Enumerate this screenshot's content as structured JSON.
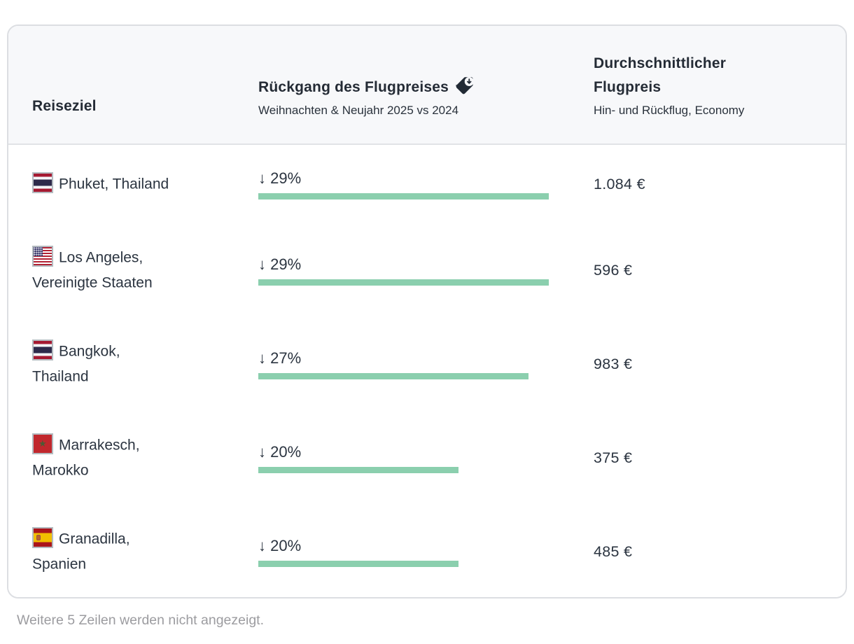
{
  "table": {
    "columns": [
      {
        "label": "Reiseziel",
        "subtitle": ""
      },
      {
        "label": "Rückgang des Flugpreises",
        "subtitle": "Weihnachten & Neujahr 2025 vs 2024",
        "icon": "price-tag-down-icon"
      },
      {
        "label": "Durchschnittlicher\nFlugpreis",
        "subtitle": "Hin- und Rückflug, Economy"
      }
    ],
    "rows": [
      {
        "flag": "thailand-flag",
        "destination": "Phuket, Thailand",
        "drop_label": "↓ 29%",
        "drop_pct": 29,
        "price": "1.084 €"
      },
      {
        "flag": "usa-flag",
        "destination": "Los Angeles,\nVereinigte Staaten",
        "drop_label": "↓ 29%",
        "drop_pct": 29,
        "price": "596 €"
      },
      {
        "flag": "thailand-flag",
        "destination": "Bangkok,\nThailand",
        "drop_label": "↓ 27%",
        "drop_pct": 27,
        "price": "983 €"
      },
      {
        "flag": "morocco-flag",
        "destination": "Marrakesch,\nMarokko",
        "drop_label": "↓ 20%",
        "drop_pct": 20,
        "price": "375 €"
      },
      {
        "flag": "spain-flag",
        "destination": "Granadilla,\nSpanien",
        "drop_label": "↓ 20%",
        "drop_pct": 20,
        "price": "485 €"
      }
    ],
    "footer": "Weitere 5 Zeilen werden nicht angezeigt.",
    "star_glyph": "★"
  },
  "chart_data": {
    "type": "table",
    "title": "",
    "columns": [
      "Reiseziel",
      "Rückgang des Flugpreises (Weihnachten & Neujahr 2025 vs 2024)",
      "Durchschnittlicher Flugpreis (Hin- und Rückflug, Economy)"
    ],
    "rows": [
      [
        "Phuket, Thailand",
        "↓ 29%",
        "1.084 €"
      ],
      [
        "Los Angeles, Vereinigte Staaten",
        "↓ 29%",
        "596 €"
      ],
      [
        "Bangkok, Thailand",
        "↓ 27%",
        "983 €"
      ],
      [
        "Marrakesch, Marokko",
        "↓ 20%",
        "375 €"
      ],
      [
        "Granadilla, Spanien",
        "↓ 20%",
        "485 €"
      ]
    ],
    "bar_series": {
      "name": "Rückgang des Flugpreises (%)",
      "values": [
        29,
        29,
        27,
        20,
        20
      ]
    },
    "bar_max": 29,
    "bar_color": "#8bcfae",
    "note": "Weitere 5 Zeilen werden nicht angezeigt."
  },
  "colors": {
    "header_bg": "#f7f8fa",
    "card_border": "#dcdee2",
    "divider": "#e1e3e6",
    "text_dark": "#2b3440",
    "bar_green": "#8bcfae",
    "footer_gray": "#9c9ca0"
  }
}
